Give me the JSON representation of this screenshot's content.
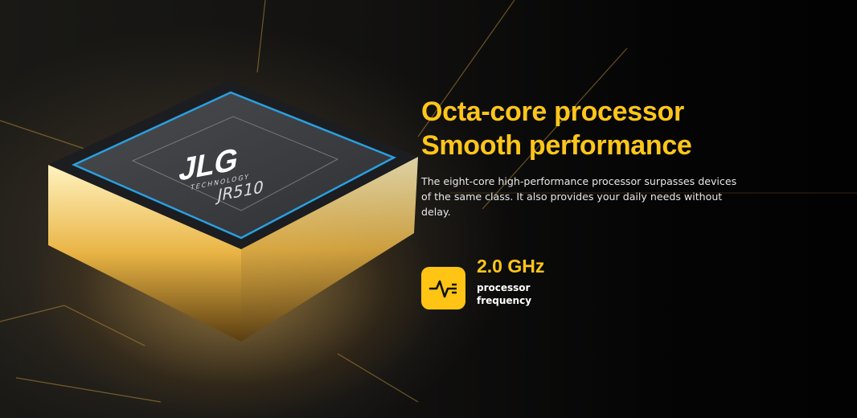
{
  "hero": {
    "title_line1": "Octa-core processor",
    "title_line2": "Smooth performance",
    "description": "The eight-core high-performance processor surpasses devices of the same class. It also provides your daily needs without delay."
  },
  "spec": {
    "value": "2.0 GHz",
    "label_line1": "processor",
    "label_line2": "frequency",
    "icon": "pulse-waveform-icon"
  },
  "chip": {
    "brand": "JLG",
    "brand_sub": "TECHNOLOGY",
    "model": "JR510"
  },
  "colors": {
    "accent": "#ffc61a",
    "chip_blue": "#2a9fe0"
  }
}
